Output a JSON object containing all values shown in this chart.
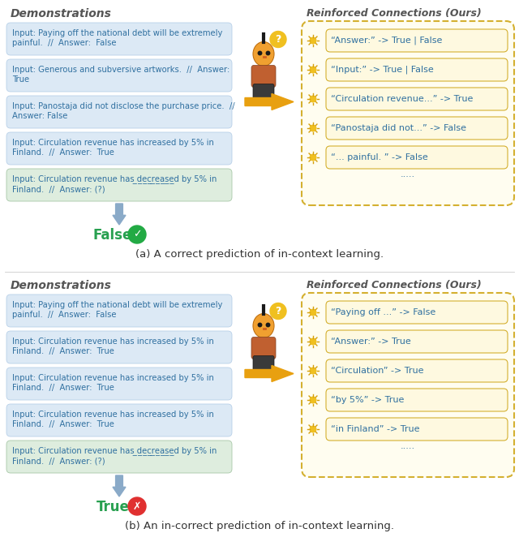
{
  "fig_width": 6.4,
  "fig_height": 6.73,
  "bg_color": "#ffffff",
  "panel_a": {
    "title_demo": "Demonstrations",
    "title_rc": "Reinforced Connections (Ours)",
    "demo_boxes": [
      {
        "text": "Input: Paying off the national debt will be extremely\npainful.  //  Answer:  False",
        "color": "#dce9f5",
        "ecolor": "#b8d0e8"
      },
      {
        "text": "Input: Generous and subversive artworks.  //  Answer:\nTrue",
        "color": "#dce9f5",
        "ecolor": "#b8d0e8"
      },
      {
        "text": "Input: Panostaja did not disclose the purchase price.  //\nAnswer: False",
        "color": "#dce9f5",
        "ecolor": "#b8d0e8"
      },
      {
        "text": "Input: Circulation revenue has increased by 5% in\nFinland.  //  Answer:  True",
        "color": "#dce9f5",
        "ecolor": "#b8d0e8"
      },
      {
        "text": "Input: Circulation revenue has ̲d̲e̲c̲r̲e̲a̲s̲e̲d by 5% in\nFinland.  //  Answer: (?)",
        "color": "#deedde",
        "ecolor": "#a8c8a8"
      }
    ],
    "rc_texts": [
      "“Answer:” -> True | False",
      "“Input:” -> True | False",
      "“Circulation revenue...” -> True",
      "“Panostaja did not...” -> False",
      "“... painful. ” -> False"
    ],
    "result_text": "False",
    "result_correct": true,
    "caption": "(a) A correct prediction of in-context learning."
  },
  "panel_b": {
    "title_demo": "Demonstrations",
    "title_rc": "Reinforced Connections (Ours)",
    "demo_boxes": [
      {
        "text": "Input: Paying off the national debt will be extremely\npainful.  //  Answer:  False",
        "color": "#dce9f5",
        "ecolor": "#b8d0e8"
      },
      {
        "text": "Input: Circulation revenue has increased by 5% in\nFinland.  //  Answer:  True",
        "color": "#dce9f5",
        "ecolor": "#b8d0e8"
      },
      {
        "text": "Input: Circulation revenue has increased by 5% in\nFinland.  //  Answer:  True",
        "color": "#dce9f5",
        "ecolor": "#b8d0e8"
      },
      {
        "text": "Input: Circulation revenue has increased by 5% in\nFinland.  //  Answer:  True",
        "color": "#dce9f5",
        "ecolor": "#b8d0e8"
      },
      {
        "text": "Input: Circulation revenue has ̲d̲e̲c̲r̲e̲a̲s̲e̲d by 5% in\nFinland.  //  Answer: (?)",
        "color": "#deedde",
        "ecolor": "#a8c8a8"
      }
    ],
    "rc_texts": [
      "“Paying off ...” -> False",
      "“Answer:” -> True",
      "“Circulation” -> True",
      "“by 5%” -> True",
      "“in Finland” -> True"
    ],
    "result_text": "True",
    "result_correct": false,
    "caption": "(b) An in-correct prediction of in-context learning."
  },
  "box_text_color": "#3070a0",
  "rc_box_fill": "#fef9e0",
  "rc_box_edge": "#d4b030",
  "rc_outer_fill": "#fffdf0",
  "rc_outer_edge": "#d4b030",
  "demo_title_color": "#555555",
  "arrow_down_color": "#8aaac8",
  "arrow_right_color": "#e8a010",
  "result_color": "#28a050",
  "check_color": "#22aa44",
  "cross_color": "#e03030",
  "dots_text": ".....",
  "dots_color": "#3070a0",
  "caption_color": "#333333"
}
